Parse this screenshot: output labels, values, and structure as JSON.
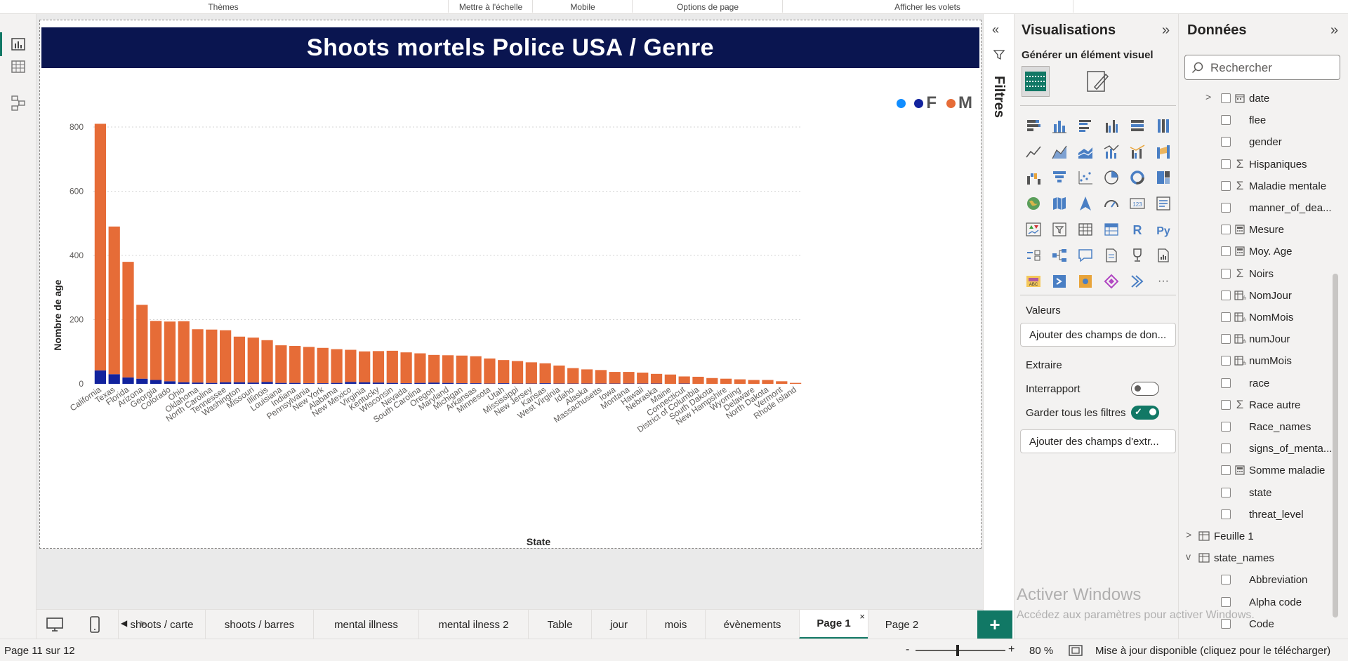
{
  "ribbon": {
    "groups": [
      "Thèmes",
      "Mettre à l'échelle",
      "Mobile",
      "Options de page",
      "Afficher les volets"
    ]
  },
  "report": {
    "title": "Shoots mortels Police USA / Genre",
    "legend": {
      "labels": [
        "F",
        "M"
      ]
    }
  },
  "chart_data": {
    "type": "bar",
    "stacked": true,
    "title": "Shoots mortels Police USA / Genre",
    "xlabel": "State",
    "ylabel": "Nombre de age",
    "ylim": [
      0,
      800
    ],
    "yticks": [
      0,
      200,
      400,
      600,
      800
    ],
    "grid": true,
    "legend_position": "top-right",
    "categories": [
      "California",
      "Texas",
      "Florida",
      "Arizona",
      "Georgia",
      "Colorado",
      "Ohio",
      "Oklahoma",
      "North Carolina",
      "Tennessee",
      "Washington",
      "Missouri",
      "Illinois",
      "Louisiana",
      "Indiana",
      "Pennsylvania",
      "New York",
      "Alabama",
      "New Mexico",
      "Virginia",
      "Kentucky",
      "Wisconsin",
      "Nevada",
      "South Carolina",
      "Oregon",
      "Maryland",
      "Michigan",
      "Arkansas",
      "Minnesota",
      "Utah",
      "Mississippi",
      "New Jersey",
      "Kansas",
      "West Virginia",
      "Idaho",
      "Alaska",
      "Massachusetts",
      "Iowa",
      "Montana",
      "Hawaii",
      "Nebraska",
      "Maine",
      "Connecticut",
      "District of Columbia",
      "South Dakota",
      "New Hampshire",
      "Wyoming",
      "Delaware",
      "North Dakota",
      "Vermont",
      "Rhode Island"
    ],
    "series": [
      {
        "name": "F",
        "color": "#12239e",
        "values": [
          42,
          30,
          20,
          16,
          12,
          8,
          5,
          4,
          3,
          5,
          5,
          4,
          6,
          3,
          3,
          2,
          2,
          3,
          6,
          5,
          4,
          3,
          2,
          3,
          4,
          3,
          2,
          2,
          1,
          2,
          1,
          1,
          2,
          1,
          1,
          1,
          1,
          1,
          1,
          1,
          1,
          0,
          1,
          0,
          0,
          0,
          0,
          0,
          0,
          0,
          0
        ]
      },
      {
        "name": "M",
        "color": "#e66c37",
        "values": [
          768,
          460,
          360,
          230,
          184,
          186,
          190,
          166,
          166,
          162,
          142,
          140,
          130,
          117,
          115,
          113,
          110,
          105,
          100,
          96,
          98,
          100,
          96,
          92,
          86,
          86,
          86,
          84,
          78,
          72,
          70,
          66,
          62,
          56,
          48,
          44,
          42,
          36,
          36,
          34,
          30,
          29,
          22,
          22,
          18,
          16,
          14,
          12,
          12,
          8,
          3
        ]
      }
    ]
  },
  "filters": {
    "label": "Filtres"
  },
  "visualisations": {
    "title": "Visualisations",
    "subtitle": "Générer un élément visuel",
    "valeurs_label": "Valeurs",
    "valeurs_placeholder": "Ajouter des champs de don...",
    "extraire_label": "Extraire",
    "interrapport_label": "Interrapport",
    "garder_label": "Garder tous les filtres",
    "extraire_placeholder": "Ajouter des champs d'extr...",
    "icons": [
      "stacked-bar-icon",
      "stacked-column-icon",
      "clustered-bar-icon",
      "clustered-column-icon",
      "100-bar-icon",
      "100-column-icon",
      "line-chart-icon",
      "area-chart-icon",
      "stacked-area-icon",
      "line-column-icon",
      "line-clustered-icon",
      "ribbon-chart-icon",
      "waterfall-icon",
      "funnel-icon",
      "scatter-icon",
      "pie-icon",
      "donut-icon",
      "treemap-icon",
      "map-icon",
      "filled-map-icon",
      "azure-map-icon",
      "gauge-icon",
      "card-icon",
      "multirow-card-icon",
      "kpi-icon",
      "slicer-icon",
      "table-icon",
      "matrix-icon",
      "r-visual-icon",
      "python-visual-icon",
      "key-influencers-icon",
      "decomposition-tree-icon",
      "qa-icon",
      "narrative-icon",
      "goals-icon",
      "paginated-report-icon",
      "power-apps-icon",
      "power-automate-icon",
      "arcgis-icon",
      "diamond-icon",
      "chevron-icon",
      "more-icon"
    ],
    "r_label": "R",
    "py_label": "Py",
    "card_label": "123",
    "more_label": "···"
  },
  "data_pane": {
    "title": "Données",
    "search_placeholder": "Rechercher",
    "fields": [
      {
        "label": "date",
        "icon": "calendar"
      },
      {
        "label": "flee",
        "icon": ""
      },
      {
        "label": "gender",
        "icon": ""
      },
      {
        "label": "Hispaniques",
        "icon": "sigma"
      },
      {
        "label": "Maladie mentale",
        "icon": "sigma"
      },
      {
        "label": "manner_of_dea...",
        "icon": ""
      },
      {
        "label": "Mesure",
        "icon": "measure"
      },
      {
        "label": "Moy. Age",
        "icon": "measure"
      },
      {
        "label": "Noirs",
        "icon": "sigma"
      },
      {
        "label": "NomJour",
        "icon": "calc"
      },
      {
        "label": "NomMois",
        "icon": "calc"
      },
      {
        "label": "numJour",
        "icon": "calc"
      },
      {
        "label": "numMois",
        "icon": "calc"
      },
      {
        "label": "race",
        "icon": ""
      },
      {
        "label": "Race autre",
        "icon": "sigma"
      },
      {
        "label": "Race_names",
        "icon": ""
      },
      {
        "label": "signs_of_menta...",
        "icon": ""
      },
      {
        "label": "Somme maladie",
        "icon": "measure"
      },
      {
        "label": "state",
        "icon": ""
      },
      {
        "label": "threat_level",
        "icon": ""
      }
    ],
    "tables": [
      "Feuille 1",
      "state_names"
    ],
    "state_fields": [
      "Abbreviation",
      "Alpha code",
      "Code"
    ]
  },
  "watermark": {
    "line1": "Activer Windows",
    "line2": "Accédez aux paramètres pour activer Windows."
  },
  "page_tabs": [
    "shoots / carte",
    "shoots / barres",
    "mental illness",
    "mental ilness 2",
    "Table",
    "jour",
    "mois",
    "évènements",
    "Page 1",
    "Page 2"
  ],
  "active_tab": "Page 1",
  "status": {
    "page": "Page 11 sur 12",
    "zoom": "80 %",
    "update": "Mise à jour disponible (cliquez pour le télécharger)"
  }
}
